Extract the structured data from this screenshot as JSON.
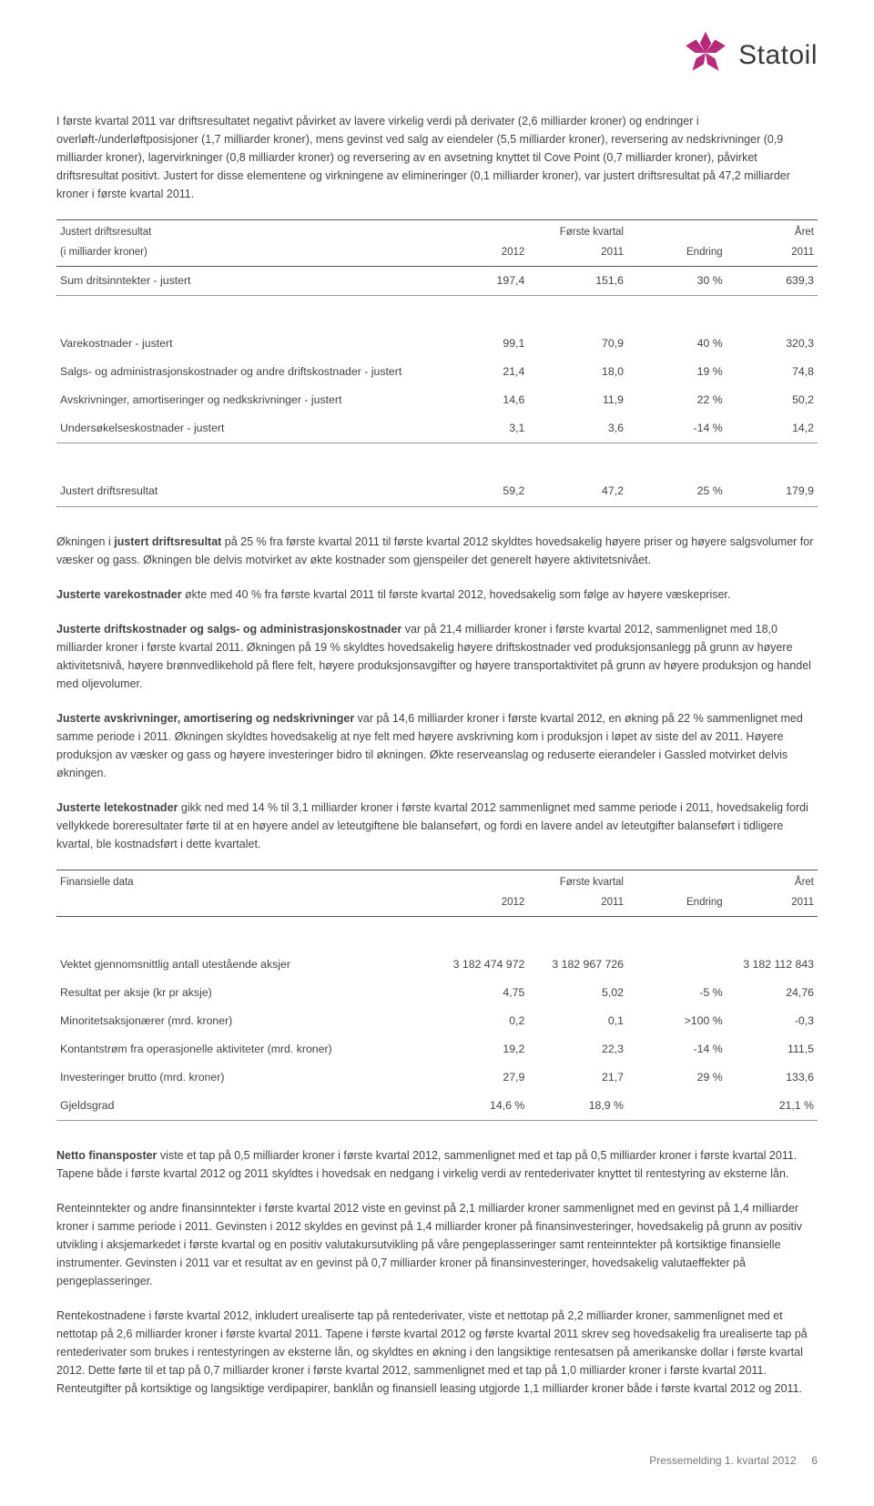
{
  "logo": {
    "company": "Statoil",
    "star_color": "#b72879"
  },
  "intro_paragraph": "I første kvartal 2011 var driftsresultatet negativt påvirket av lavere virkelig verdi på derivater (2,6 milliarder kroner) og endringer i overløft-/underløftposisjoner (1,7 milliarder kroner), mens gevinst ved salg av eiendeler (5,5 milliarder kroner), reversering av nedskrivninger (0,9 milliarder kroner), lagervirkninger (0,8 milliarder kroner) og reversering av en avsetning knyttet til Cove Point (0,7 milliarder kroner), påvirket driftsresultat positivt. Justert for disse elementene og virkningene av elimineringer (0,1 milliarder kroner), var justert driftsresultat på 47,2 milliarder kroner i første kvartal 2011.",
  "table1": {
    "header": {
      "title_left": "Justert driftsresultat",
      "unit": "(i milliarder kroner)",
      "group": "Første kvartal",
      "year_group": "Året",
      "cols": [
        "2012",
        "2011",
        "Endring",
        "2011"
      ]
    },
    "rows": [
      {
        "label": "Sum dritsinntekter - justert",
        "v": [
          "197,4",
          "151,6",
          "30 %",
          "639,3"
        ],
        "bottomrule": true
      },
      {
        "spacer": true
      },
      {
        "label": "Varekostnader - justert",
        "v": [
          "99,1",
          "70,9",
          "40 %",
          "320,3"
        ]
      },
      {
        "label": "Salgs- og administrasjonskostnader og andre driftskostnader - justert",
        "v": [
          "21,4",
          "18,0",
          "19 %",
          "74,8"
        ]
      },
      {
        "label": "Avskrivninger, amortiseringer og nedkskrivninger - justert",
        "v": [
          "14,6",
          "11,9",
          "22 %",
          "50,2"
        ]
      },
      {
        "label": "Undersøkelseskostnader - justert",
        "v": [
          "3,1",
          "3,6",
          "-14 %",
          "14,2"
        ],
        "bottomrule": true
      },
      {
        "spacer": true
      },
      {
        "label": "Justert driftsresultat",
        "v": [
          "59,2",
          "47,2",
          "25 %",
          "179,9"
        ],
        "bottomrule": true
      }
    ]
  },
  "body_paragraphs": [
    {
      "lead": "Økningen i ",
      "bold": "justert driftsresultat",
      "rest": " på 25 % fra første kvartal 2011 til første kvartal 2012 skyldtes hovedsakelig høyere priser og høyere salgsvolumer for væsker og gass. Økningen ble delvis motvirket av økte kostnader som gjenspeiler det generelt høyere aktivitetsnivået."
    },
    {
      "lead": "",
      "bold": "Justerte varekostnader",
      "rest": " økte med 40 % fra første kvartal 2011 til første kvartal 2012, hovedsakelig som følge av høyere væskepriser."
    },
    {
      "lead": "",
      "bold": "Justerte driftskostnader og salgs- og administrasjonskostnader",
      "rest": " var på 21,4 milliarder kroner i første kvartal 2012, sammenlignet med 18,0 milliarder kroner i første kvartal 2011. Økningen på 19 % skyldtes hovedsakelig høyere driftskostnader ved produksjonsanlegg på grunn av høyere aktivitetsnivå, høyere brønnvedlikehold på flere felt, høyere produksjonsavgifter og høyere transportaktivitet på grunn av høyere produksjon og handel med oljevolumer."
    },
    {
      "lead": "",
      "bold": "Justerte avskrivninger, amortisering og nedskrivninger",
      "rest": " var på 14,6 milliarder kroner i første kvartal 2012, en økning på 22 % sammenlignet med samme periode i 2011. Økningen skyldtes hovedsakelig at nye felt med høyere avskrivning kom i produksjon i løpet av siste del av 2011. Høyere produksjon av væsker og gass og høyere investeringer bidro til økningen. Økte reserveanslag og reduserte eierandeler i Gassled motvirket delvis økningen."
    },
    {
      "lead": "",
      "bold": "Justerte letekostnader",
      "rest": " gikk ned med 14 % til 3,1 milliarder kroner i første kvartal 2012 sammenlignet med samme periode i 2011, hovedsakelig fordi vellykkede boreresultater førte til at en høyere andel av leteutgiftene ble balanseført, og fordi en lavere andel av leteutgifter balanseført i tidligere kvartal, ble kostnadsført i dette kvartalet."
    }
  ],
  "table2": {
    "header": {
      "title_left": "Finansielle data",
      "unit": "",
      "group": "Første kvartal",
      "year_group": "Året",
      "cols": [
        "2012",
        "2011",
        "Endring",
        "2011"
      ]
    },
    "rows": [
      {
        "spacer": true
      },
      {
        "label": "Vektet gjennomsnittlig antall utestående aksjer",
        "v": [
          "3 182 474 972",
          "3 182 967 726",
          "",
          "3 182 112 843"
        ]
      },
      {
        "label": "Resultat per aksje (kr pr aksje)",
        "v": [
          "4,75",
          "5,02",
          "-5 %",
          "24,76"
        ]
      },
      {
        "label": "Minoritetsaksjonærer (mrd. kroner)",
        "v": [
          "0,2",
          "0,1",
          ">100 %",
          "-0,3"
        ]
      },
      {
        "label": "Kontantstrøm fra operasjonelle aktiviteter (mrd. kroner)",
        "v": [
          "19,2",
          "22,3",
          "-14 %",
          "111,5"
        ]
      },
      {
        "label": "Investeringer brutto (mrd. kroner)",
        "v": [
          "27,9",
          "21,7",
          "29 %",
          "133,6"
        ]
      },
      {
        "label": "Gjeldsgrad",
        "v": [
          "14,6 %",
          "18,9 %",
          "",
          "21,1 %"
        ],
        "bottomrule": true
      }
    ]
  },
  "closing_paragraphs": [
    {
      "bold": "Netto finansposter",
      "rest": " viste et tap på 0,5 milliarder kroner i første kvartal 2012, sammenlignet med et tap på 0,5 milliarder kroner i første kvartal 2011. Tapene både i første kvartal 2012 og 2011 skyldtes i hovedsak en nedgang i virkelig verdi av rentederivater knyttet til rentestyring av eksterne lån."
    },
    {
      "bold": "",
      "rest": "Renteinntekter og andre finansinntekter i første kvartal 2012 viste en gevinst på 2,1 milliarder kroner sammenlignet med en gevinst på 1,4 milliarder kroner i samme periode i 2011. Gevinsten i 2012 skyldes en gevinst på 1,4 milliarder kroner på finansinvesteringer, hovedsakelig på grunn av positiv utvikling i aksjemarkedet i første kvartal og en positiv valutakursutvikling på våre pengeplasseringer samt renteinntekter på kortsiktige finansielle instrumenter. Gevinsten i 2011 var et resultat av en gevinst på 0,7 milliarder kroner på finansinvesteringer, hovedsakelig valutaeffekter på pengeplasseringer."
    },
    {
      "bold": "",
      "rest": "Rentekostnadene i første kvartal 2012, inkludert urealiserte tap på rentederivater, viste et nettotap på 2,2 milliarder kroner, sammenlignet med et nettotap på 2,6 milliarder kroner i første kvartal 2011. Tapene i første kvartal 2012 og første kvartal 2011 skrev seg hovedsakelig fra urealiserte tap på rentederivater som brukes i rentestyringen av eksterne lån, og skyldtes en økning i den langsiktige rentesatsen på amerikanske dollar i første kvartal 2012. Dette førte til et tap på 0,7 milliarder kroner i første kvartal 2012, sammenlignet med et tap på 1,0 milliarder kroner i første kvartal 2011. Renteutgifter på kortsiktige og langsiktige verdipapirer, banklån og finansiell leasing utgjorde 1,1 milliarder kroner både i første kvartal 2012 og 2011."
    }
  ],
  "footer": {
    "text": "Pressemelding 1. kvartal 2012",
    "page": "6"
  }
}
